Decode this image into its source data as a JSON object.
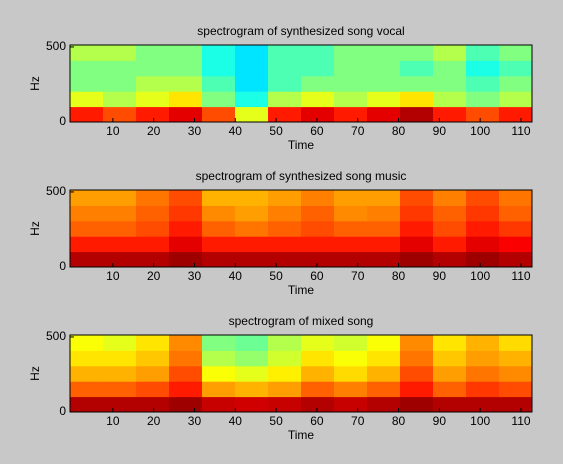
{
  "chart_data": [
    {
      "type": "heatmap",
      "title": "spectrogram  of synthesized song vocal",
      "x_label": "Time",
      "y_label": "Hz",
      "xlim": [
        -0.5,
        112.7
      ],
      "ylim": [
        0,
        513
      ],
      "xticks": [
        10,
        20,
        30,
        40,
        50,
        60,
        70,
        80,
        90,
        100,
        110
      ],
      "yticks": [
        0,
        500
      ],
      "z": [
        [
          0.85,
          0.8,
          0.85,
          0.9,
          0.8,
          0.6,
          0.85,
          0.9,
          0.85,
          0.9,
          0.95,
          0.85,
          0.8,
          0.85
        ],
        [
          0.6,
          0.55,
          0.6,
          0.65,
          0.5,
          0.4,
          0.55,
          0.6,
          0.55,
          0.6,
          0.65,
          0.55,
          0.5,
          0.55
        ],
        [
          0.5,
          0.5,
          0.55,
          0.55,
          0.45,
          0.35,
          0.45,
          0.5,
          0.5,
          0.5,
          0.5,
          0.5,
          0.45,
          0.5
        ],
        [
          0.5,
          0.5,
          0.5,
          0.5,
          0.4,
          0.35,
          0.45,
          0.45,
          0.5,
          0.5,
          0.45,
          0.5,
          0.4,
          0.45
        ],
        [
          0.55,
          0.55,
          0.5,
          0.5,
          0.4,
          0.35,
          0.45,
          0.45,
          0.5,
          0.5,
          0.5,
          0.55,
          0.45,
          0.5
        ]
      ]
    },
    {
      "type": "heatmap",
      "title": "spectrogram  of synthesized song music",
      "x_label": "Time",
      "y_label": "Hz",
      "xlim": [
        -0.5,
        112.7
      ],
      "ylim": [
        0,
        513
      ],
      "xticks": [
        10,
        20,
        30,
        40,
        50,
        60,
        70,
        80,
        90,
        100,
        110
      ],
      "yticks": [
        0,
        500
      ],
      "z": [
        [
          0.95,
          0.95,
          0.95,
          0.97,
          0.95,
          0.95,
          0.95,
          0.95,
          0.95,
          0.95,
          0.97,
          0.95,
          0.97,
          0.95
        ],
        [
          0.85,
          0.85,
          0.85,
          0.9,
          0.85,
          0.85,
          0.85,
          0.85,
          0.85,
          0.85,
          0.9,
          0.85,
          0.9,
          0.88
        ],
        [
          0.78,
          0.78,
          0.8,
          0.85,
          0.78,
          0.76,
          0.78,
          0.8,
          0.78,
          0.78,
          0.85,
          0.8,
          0.85,
          0.82
        ],
        [
          0.75,
          0.75,
          0.78,
          0.82,
          0.74,
          0.72,
          0.75,
          0.78,
          0.74,
          0.75,
          0.82,
          0.78,
          0.82,
          0.78
        ],
        [
          0.72,
          0.72,
          0.76,
          0.8,
          0.7,
          0.7,
          0.72,
          0.75,
          0.72,
          0.72,
          0.8,
          0.75,
          0.8,
          0.76
        ]
      ]
    },
    {
      "type": "heatmap",
      "title": "spectrogram of mixed song",
      "x_label": "Time",
      "y_label": "Hz",
      "xlim": [
        -0.5,
        112.7
      ],
      "ylim": [
        0,
        513
      ],
      "xticks": [
        10,
        20,
        30,
        40,
        50,
        60,
        70,
        80,
        90,
        100,
        110
      ],
      "yticks": [
        0,
        500
      ],
      "z": [
        [
          0.95,
          0.95,
          0.95,
          0.97,
          0.93,
          0.92,
          0.93,
          0.95,
          0.93,
          0.95,
          0.97,
          0.95,
          0.95,
          0.95
        ],
        [
          0.78,
          0.78,
          0.8,
          0.85,
          0.72,
          0.7,
          0.72,
          0.78,
          0.75,
          0.78,
          0.85,
          0.78,
          0.82,
          0.8
        ],
        [
          0.7,
          0.7,
          0.72,
          0.8,
          0.62,
          0.6,
          0.64,
          0.7,
          0.66,
          0.7,
          0.8,
          0.72,
          0.76,
          0.74
        ],
        [
          0.65,
          0.65,
          0.68,
          0.76,
          0.55,
          0.52,
          0.58,
          0.65,
          0.62,
          0.65,
          0.76,
          0.68,
          0.72,
          0.7
        ],
        [
          0.62,
          0.6,
          0.65,
          0.74,
          0.5,
          0.48,
          0.55,
          0.6,
          0.58,
          0.62,
          0.74,
          0.65,
          0.7,
          0.66
        ]
      ]
    }
  ]
}
